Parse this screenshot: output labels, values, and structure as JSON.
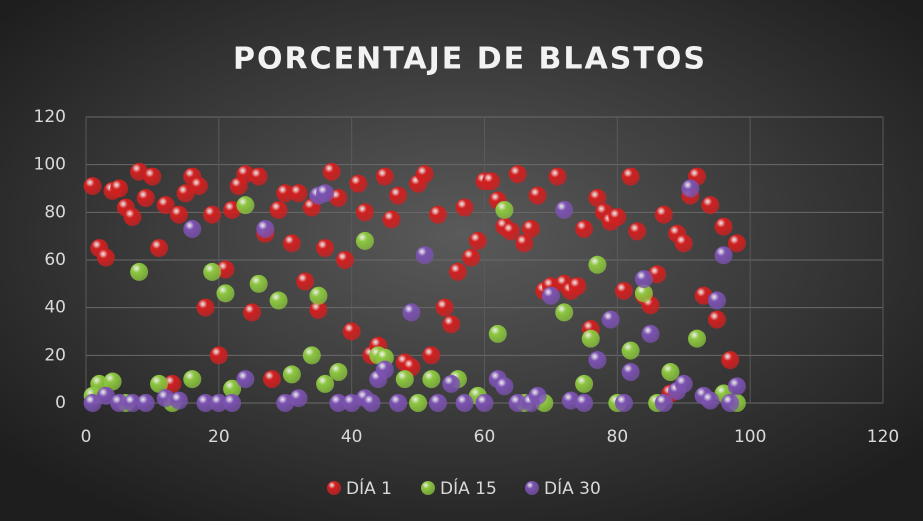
{
  "chart_data": {
    "type": "scatter",
    "title": "PORCENTAJE DE BLASTOS",
    "xlim": [
      0,
      120
    ],
    "xticks": [
      0,
      20,
      40,
      60,
      80,
      100,
      120
    ],
    "ylim": [
      0,
      120
    ],
    "yticks": [
      0,
      20,
      40,
      60,
      80,
      100,
      120
    ],
    "grid": true,
    "legend": "bottom",
    "series": [
      {
        "name": "DÍA 1",
        "color": "#d02020",
        "x": [
          1,
          2,
          3,
          4,
          5,
          6,
          7,
          8,
          9,
          10,
          11,
          12,
          13,
          14,
          15,
          16,
          17,
          18,
          19,
          20,
          21,
          22,
          23,
          24,
          25,
          26,
          27,
          28,
          29,
          30,
          31,
          32,
          33,
          34,
          35,
          36,
          37,
          38,
          39,
          40,
          41,
          42,
          43,
          44,
          45,
          46,
          47,
          48,
          49,
          50,
          51,
          52,
          53,
          54,
          55,
          56,
          57,
          58,
          59,
          60,
          61,
          62,
          63,
          64,
          65,
          66,
          67,
          68,
          69,
          70,
          71,
          72,
          73,
          74,
          75,
          76,
          77,
          78,
          79,
          80,
          81,
          82,
          83,
          84,
          85,
          86,
          87,
          88,
          89,
          90,
          91,
          92,
          93,
          94,
          95,
          96,
          97,
          98
        ],
        "values": [
          91,
          65,
          61,
          89,
          90,
          82,
          78,
          97,
          86,
          95,
          65,
          83,
          8,
          79,
          88,
          95,
          91,
          40,
          79,
          20,
          56,
          81,
          91,
          96,
          38,
          95,
          71,
          10,
          81,
          88,
          67,
          88,
          51,
          82,
          39,
          65,
          97,
          86,
          60,
          30,
          92,
          80,
          20,
          24,
          95,
          77,
          87,
          17,
          15,
          92,
          96,
          20,
          79,
          40,
          33,
          55,
          82,
          61,
          68,
          93,
          93,
          85,
          74,
          72,
          96,
          67,
          73,
          87,
          47,
          49,
          95,
          50,
          47,
          49,
          73,
          31,
          86,
          80,
          76,
          78,
          47,
          95,
          72,
          45,
          41,
          54,
          79,
          4,
          71,
          67,
          87,
          95,
          45,
          83,
          35,
          74,
          18,
          67
        ]
      },
      {
        "name": "DÍA 15",
        "color": "#8cc63f",
        "x": [
          1,
          2,
          4,
          6,
          8,
          11,
          13,
          16,
          19,
          21,
          22,
          24,
          26,
          29,
          31,
          34,
          35,
          36,
          38,
          42,
          44,
          45,
          48,
          50,
          52,
          56,
          59,
          62,
          63,
          66,
          69,
          72,
          75,
          76,
          77,
          80,
          82,
          84,
          86,
          88,
          92,
          96,
          98
        ],
        "values": [
          3,
          8,
          9,
          0,
          55,
          8,
          0,
          10,
          55,
          46,
          6,
          83,
          50,
          43,
          12,
          20,
          45,
          8,
          13,
          68,
          20,
          19,
          10,
          0,
          10,
          10,
          3,
          29,
          81,
          0,
          0,
          38,
          8,
          27,
          58,
          0,
          22,
          46,
          0,
          13,
          27,
          4,
          0
        ]
      },
      {
        "name": "DÍA 30",
        "color": "#7b52b0",
        "x": [
          1,
          3,
          5,
          7,
          9,
          12,
          14,
          16,
          18,
          20,
          22,
          24,
          27,
          30,
          32,
          35,
          36,
          38,
          40,
          42,
          43,
          44,
          45,
          47,
          49,
          51,
          53,
          55,
          57,
          60,
          62,
          63,
          65,
          67,
          68,
          70,
          72,
          73,
          75,
          77,
          79,
          81,
          82,
          84,
          85,
          87,
          89,
          90,
          91,
          93,
          94,
          95,
          96,
          97,
          98
        ],
        "values": [
          0,
          3,
          0,
          0,
          0,
          2,
          1,
          73,
          0,
          0,
          0,
          10,
          73,
          0,
          2,
          87,
          88,
          0,
          0,
          2,
          0,
          10,
          14,
          0,
          38,
          62,
          0,
          8,
          0,
          0,
          10,
          7,
          0,
          0,
          3,
          45,
          81,
          1,
          0,
          18,
          35,
          0,
          13,
          52,
          29,
          0,
          5,
          8,
          90,
          3,
          1,
          43,
          62,
          0,
          7
        ]
      }
    ]
  }
}
